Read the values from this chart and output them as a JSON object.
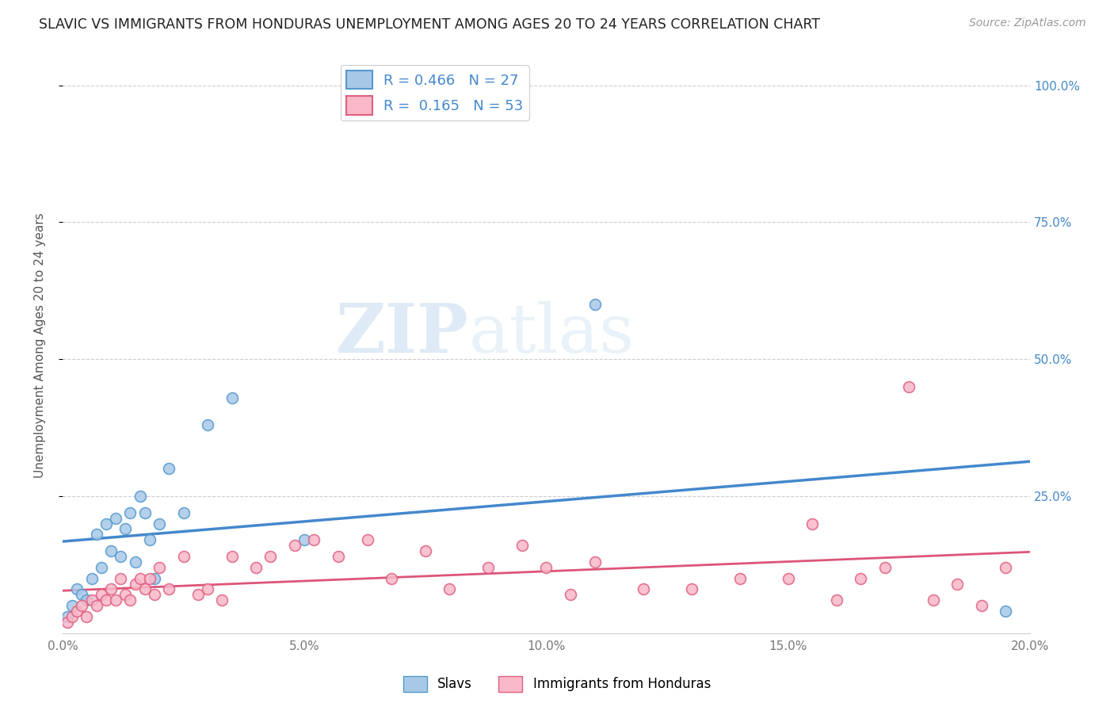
{
  "title": "SLAVIC VS IMMIGRANTS FROM HONDURAS UNEMPLOYMENT AMONG AGES 20 TO 24 YEARS CORRELATION CHART",
  "source": "Source: ZipAtlas.com",
  "ylabel": "Unemployment Among Ages 20 to 24 years",
  "xlim": [
    0.0,
    0.2
  ],
  "ylim": [
    0.0,
    1.05
  ],
  "xtick_labels": [
    "0.0%",
    "5.0%",
    "10.0%",
    "15.0%",
    "20.0%"
  ],
  "xtick_values": [
    0.0,
    0.05,
    0.1,
    0.15,
    0.2
  ],
  "ytick_labels": [
    "100.0%",
    "75.0%",
    "50.0%",
    "25.0%"
  ],
  "ytick_values": [
    1.0,
    0.75,
    0.5,
    0.25
  ],
  "legend_slavs_label": "Slavs",
  "legend_honduras_label": "Immigrants from Honduras",
  "slavic_fill_color": "#a8c8e8",
  "slavic_edge_color": "#5599cc",
  "honduras_fill_color": "#f8b8c8",
  "honduras_edge_color": "#e06080",
  "slavic_line_color": "#4488cc",
  "honduras_line_color": "#dd5577",
  "R_slavic": 0.466,
  "N_slavic": 27,
  "R_honduras": 0.165,
  "N_honduras": 53,
  "slavic_scatter_x": [
    0.001,
    0.002,
    0.003,
    0.004,
    0.005,
    0.006,
    0.007,
    0.008,
    0.009,
    0.01,
    0.011,
    0.012,
    0.013,
    0.014,
    0.015,
    0.016,
    0.017,
    0.018,
    0.019,
    0.02,
    0.022,
    0.025,
    0.03,
    0.035,
    0.05,
    0.11,
    0.195
  ],
  "slavic_scatter_y": [
    0.03,
    0.05,
    0.08,
    0.07,
    0.06,
    0.1,
    0.18,
    0.12,
    0.2,
    0.15,
    0.21,
    0.14,
    0.19,
    0.22,
    0.13,
    0.25,
    0.22,
    0.17,
    0.1,
    0.2,
    0.3,
    0.22,
    0.38,
    0.43,
    0.17,
    0.6,
    0.04
  ],
  "honduras_scatter_x": [
    0.001,
    0.002,
    0.003,
    0.004,
    0.005,
    0.006,
    0.007,
    0.008,
    0.009,
    0.01,
    0.011,
    0.012,
    0.013,
    0.014,
    0.015,
    0.016,
    0.017,
    0.018,
    0.019,
    0.02,
    0.022,
    0.025,
    0.028,
    0.03,
    0.033,
    0.035,
    0.04,
    0.043,
    0.048,
    0.052,
    0.057,
    0.063,
    0.068,
    0.075,
    0.08,
    0.088,
    0.095,
    0.1,
    0.105,
    0.11,
    0.12,
    0.13,
    0.14,
    0.15,
    0.155,
    0.16,
    0.165,
    0.17,
    0.175,
    0.18,
    0.185,
    0.19,
    0.195
  ],
  "honduras_scatter_y": [
    0.02,
    0.03,
    0.04,
    0.05,
    0.03,
    0.06,
    0.05,
    0.07,
    0.06,
    0.08,
    0.06,
    0.1,
    0.07,
    0.06,
    0.09,
    0.1,
    0.08,
    0.1,
    0.07,
    0.12,
    0.08,
    0.14,
    0.07,
    0.08,
    0.06,
    0.14,
    0.12,
    0.14,
    0.16,
    0.17,
    0.14,
    0.17,
    0.1,
    0.15,
    0.08,
    0.12,
    0.16,
    0.12,
    0.07,
    0.13,
    0.08,
    0.08,
    0.1,
    0.1,
    0.2,
    0.06,
    0.1,
    0.12,
    0.45,
    0.06,
    0.09,
    0.05,
    0.12
  ],
  "watermark_zip": "ZIP",
  "watermark_atlas": "atlas",
  "background_color": "#ffffff",
  "grid_color": "#cccccc",
  "title_color": "#222222",
  "right_tick_color": "#4488cc",
  "axis_label_color": "#555555",
  "tick_color": "#777777"
}
